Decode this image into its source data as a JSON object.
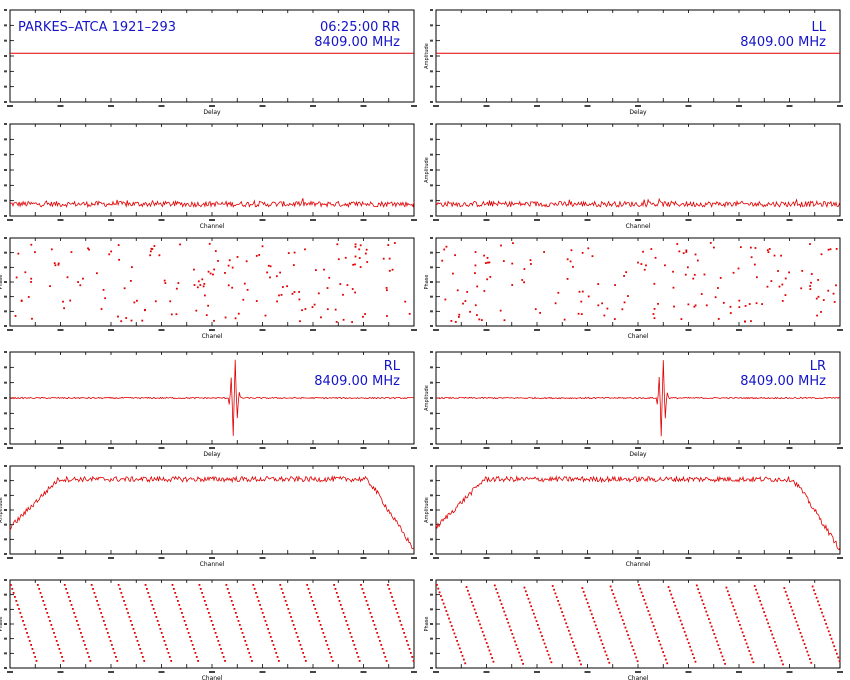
{
  "window": {
    "source_label": "PARKES–ATCA 1921–293",
    "time_label": "06:25:00"
  },
  "colors": {
    "trace": "#e00000",
    "text": "#1414c8",
    "axis": "#000000"
  },
  "chart_data": [
    {
      "id": "rr_delay",
      "type": "line",
      "xlabel": "Delay",
      "ylabel": "",
      "pol": "RR",
      "freq": "8409.00 MHz",
      "profile": "flat"
    },
    {
      "id": "ll_delay",
      "type": "line",
      "xlabel": "Delay",
      "ylabel": "Amplitude",
      "pol": "LL",
      "freq": "8409.00 MHz",
      "profile": "flat"
    },
    {
      "id": "rr_amp",
      "type": "line",
      "xlabel": "Channel",
      "ylabel": "",
      "pol": "",
      "freq": "",
      "profile": "noise"
    },
    {
      "id": "ll_amp",
      "type": "line",
      "xlabel": "Channel",
      "ylabel": "Amplitude",
      "pol": "",
      "freq": "",
      "profile": "noise"
    },
    {
      "id": "rr_phase",
      "type": "scatter",
      "xlabel": "Chanel",
      "ylabel": "Phase",
      "pol": "",
      "freq": "",
      "profile": "random"
    },
    {
      "id": "ll_phase",
      "type": "scatter",
      "xlabel": "Chanel",
      "ylabel": "Phase",
      "pol": "",
      "freq": "",
      "profile": "random"
    },
    {
      "id": "rl_delay",
      "type": "line",
      "xlabel": "Delay",
      "ylabel": "",
      "pol": "RL",
      "freq": "8409.00 MHz",
      "profile": "spike",
      "spike_at": 0.555
    },
    {
      "id": "lr_delay",
      "type": "line",
      "xlabel": "Delay",
      "ylabel": "Amplitude",
      "pol": "LR",
      "freq": "8409.00 MHz",
      "profile": "spike",
      "spike_at": 0.56
    },
    {
      "id": "rl_amp",
      "type": "line",
      "xlabel": "Channel",
      "ylabel": "Amplitude",
      "pol": "",
      "freq": "",
      "profile": "bandpass"
    },
    {
      "id": "lr_amp",
      "type": "line",
      "xlabel": "Channel",
      "ylabel": "Amplitude",
      "pol": "",
      "freq": "",
      "profile": "bandpass"
    },
    {
      "id": "rl_phase",
      "type": "scatter",
      "xlabel": "Chanel",
      "ylabel": "Phase",
      "pol": "",
      "freq": "",
      "profile": "wrap",
      "wraps": 15
    },
    {
      "id": "lr_phase",
      "type": "scatter",
      "xlabel": "Chanel",
      "ylabel": "Phase",
      "pol": "",
      "freq": "",
      "profile": "wrap",
      "wraps": 14
    }
  ]
}
